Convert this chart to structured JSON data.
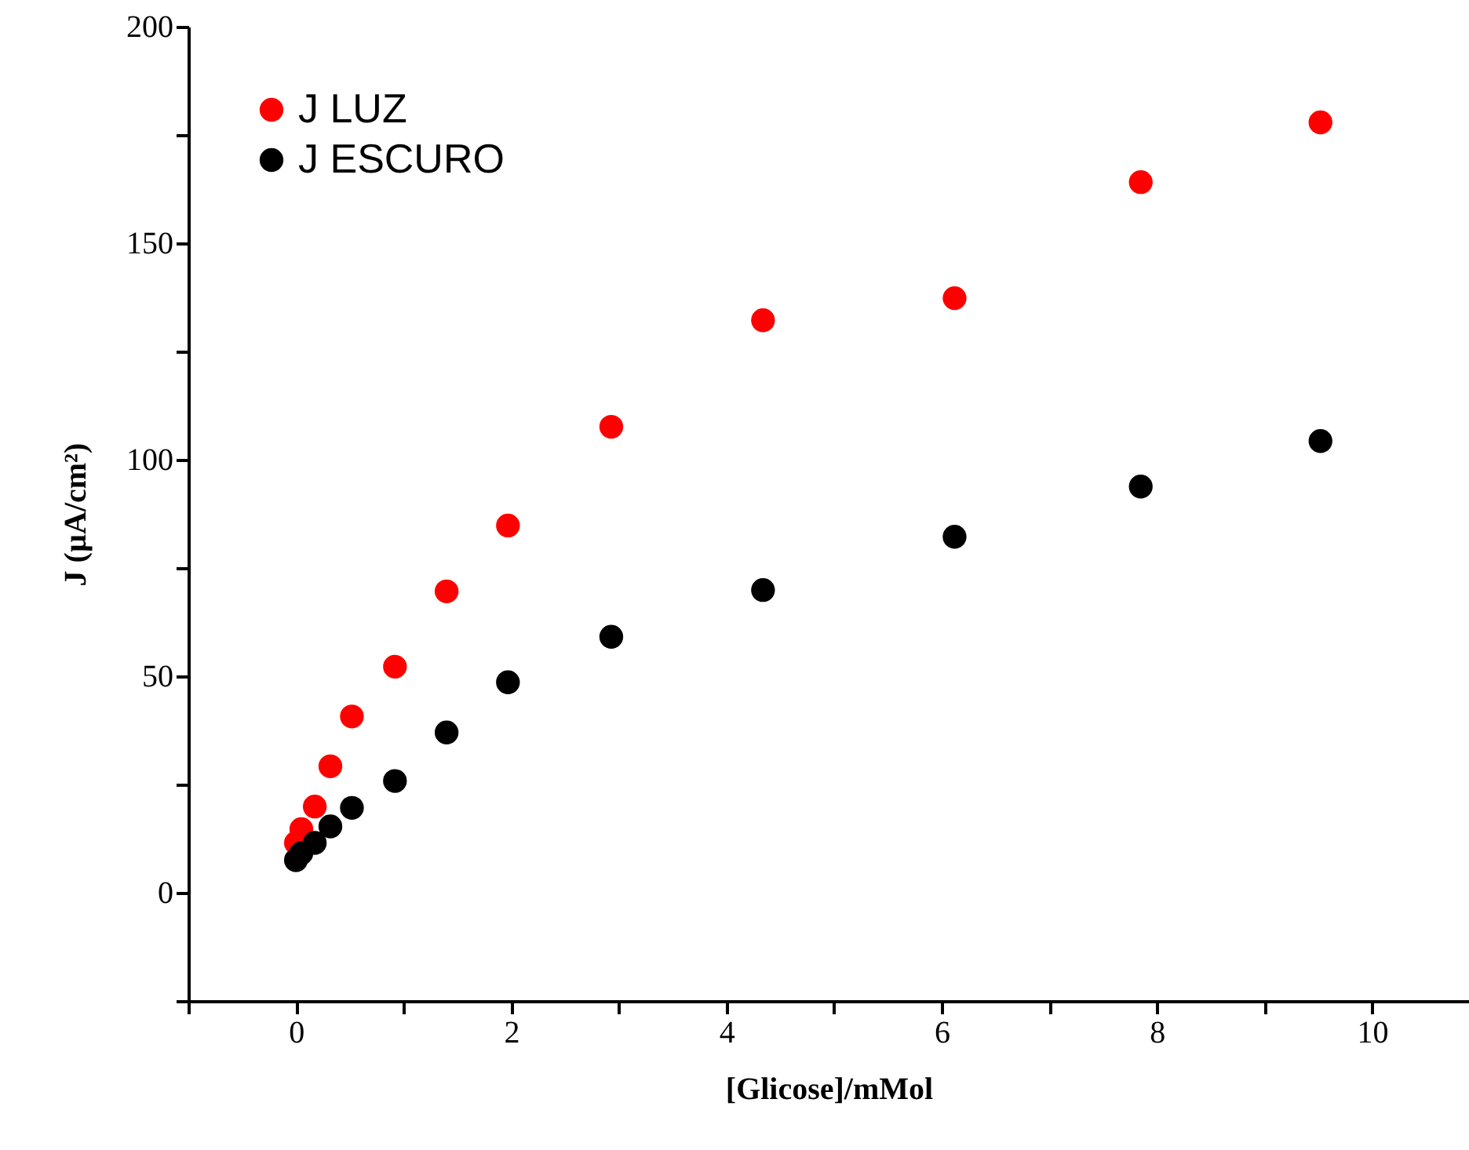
{
  "chart_data": {
    "type": "scatter",
    "xlabel": "[Glicose]/mMol",
    "ylabel": "J (µA/cm²)",
    "x": [
      0.0,
      0.05,
      0.175,
      0.32,
      0.52,
      0.92,
      1.4,
      1.97,
      2.93,
      4.34,
      6.12,
      7.85,
      9.52
    ],
    "series": [
      {
        "name": "J LUZ",
        "color": "#ff0000",
        "values": [
          11.5,
          14.7,
          19.9,
          29.2,
          40.7,
          52.2,
          69.6,
          84.8,
          107.6,
          132.2,
          137.3,
          164.1,
          177.9
        ]
      },
      {
        "name": "J ESCURO",
        "color": "#000000",
        "values": [
          7.5,
          9.1,
          11.5,
          15.3,
          19.6,
          25.8,
          37.0,
          48.6,
          59.1,
          69.9,
          82.2,
          93.8,
          104.3
        ]
      }
    ],
    "xlim": [
      -1,
      10.9
    ],
    "ylim": [
      -25,
      200
    ],
    "xticks": [
      {
        "value": -1,
        "label": null
      },
      0,
      {
        "value": 1,
        "label": null
      },
      2,
      {
        "value": 3,
        "label": null
      },
      4,
      {
        "value": 5,
        "label": null
      },
      6,
      {
        "value": 7,
        "label": null
      },
      8,
      {
        "value": 9,
        "label": null
      },
      10
    ],
    "yticks": [
      {
        "value": -25,
        "label": null
      },
      0,
      {
        "value": 25,
        "label": null
      },
      50,
      {
        "value": 75,
        "label": null
      },
      100,
      {
        "value": 125,
        "label": null
      },
      150,
      {
        "value": 175,
        "label": null
      },
      200
    ],
    "marker": "circle",
    "legend": "top left",
    "grid": false
  }
}
